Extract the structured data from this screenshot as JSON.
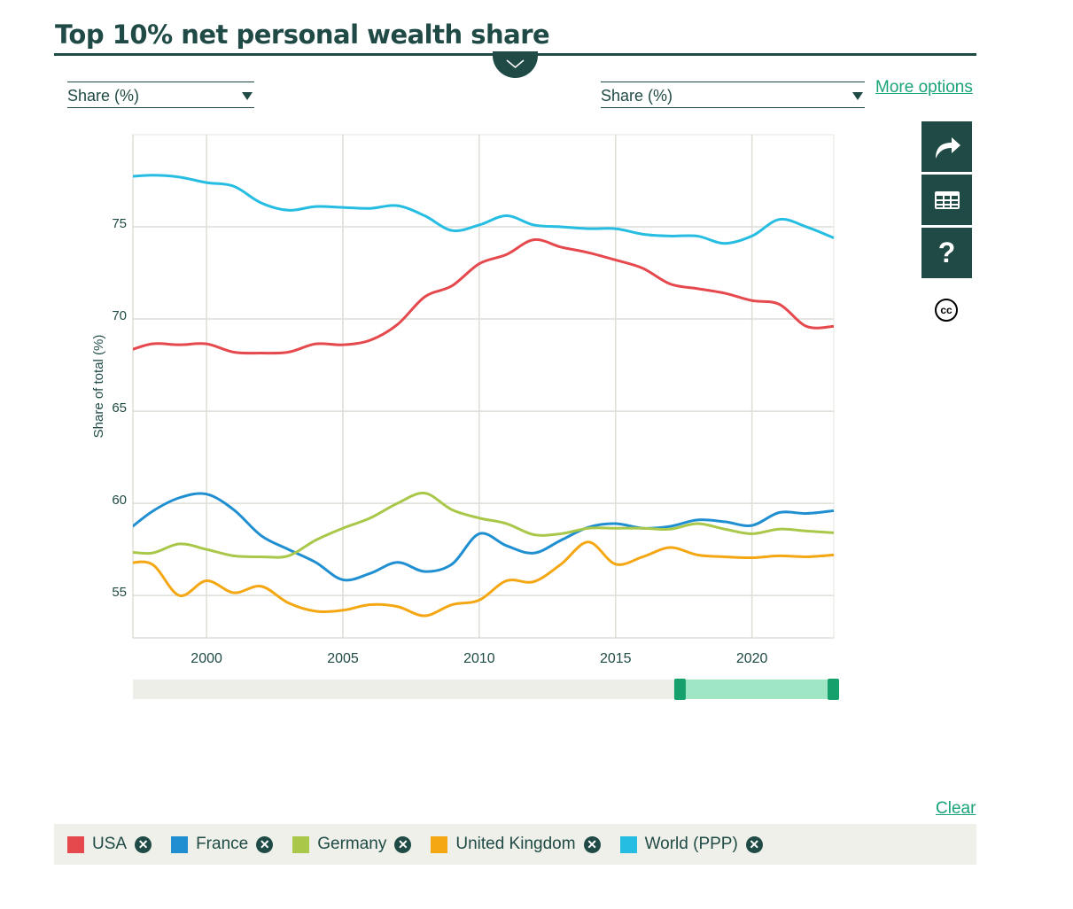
{
  "header": {
    "title": "Top 10% net personal wealth share"
  },
  "controls": {
    "left_select": "Share (%)",
    "right_select": "Share (%)",
    "more_options": "More options",
    "clear": "Clear"
  },
  "side_buttons": [
    {
      "icon": "share-icon"
    },
    {
      "icon": "table-icon"
    },
    {
      "icon": "help-icon"
    }
  ],
  "license": {
    "icon": "creative-commons-icon",
    "text": "cc"
  },
  "range_slider": {
    "selected_range": [
      2017,
      2023
    ]
  },
  "chart_data": {
    "type": "line",
    "ylabel": "Share of total (%)",
    "xlabel": "",
    "xlim": [
      1997.3,
      2023
    ],
    "ylim": [
      52.7,
      80
    ],
    "xticks": [
      2000,
      2005,
      2010,
      2015,
      2020
    ],
    "yticks": [
      55,
      60,
      65,
      70,
      75
    ],
    "grid": true,
    "x": [
      1997,
      1998,
      1999,
      2000,
      2001,
      2002,
      2003,
      2004,
      2005,
      2006,
      2007,
      2008,
      2009,
      2010,
      2011,
      2012,
      2013,
      2014,
      2015,
      2016,
      2017,
      2018,
      2019,
      2020,
      2021,
      2022,
      2023
    ],
    "series": [
      {
        "name": "USA",
        "color": "#e5484d",
        "values": [
          68.2,
          68.65,
          68.6,
          68.65,
          68.2,
          68.15,
          68.2,
          68.65,
          68.6,
          68.85,
          69.7,
          71.2,
          71.8,
          73.0,
          73.5,
          74.3,
          73.9,
          73.6,
          73.2,
          72.75,
          71.9,
          71.65,
          71.4,
          71.0,
          70.8,
          69.6,
          69.6
        ]
      },
      {
        "name": "France",
        "color": "#1f8fd1",
        "values": [
          58.4,
          59.55,
          60.3,
          60.5,
          59.65,
          58.25,
          57.5,
          56.8,
          55.85,
          56.2,
          56.8,
          56.3,
          56.7,
          58.35,
          57.7,
          57.3,
          58.0,
          58.7,
          58.9,
          58.65,
          58.75,
          59.1,
          59.0,
          58.8,
          59.5,
          59.45,
          59.6
        ]
      },
      {
        "name": "Germany",
        "color": "#a9c84a",
        "values": [
          57.4,
          57.3,
          57.8,
          57.5,
          57.15,
          57.1,
          57.15,
          58.0,
          58.65,
          59.2,
          60.0,
          60.55,
          59.65,
          59.2,
          58.9,
          58.3,
          58.35,
          58.65,
          58.65,
          58.65,
          58.6,
          58.9,
          58.6,
          58.35,
          58.6,
          58.5,
          58.4
        ]
      },
      {
        "name": "United Kingdom",
        "color": "#f4a712",
        "values": [
          56.7,
          56.7,
          55.0,
          55.8,
          55.15,
          55.5,
          54.6,
          54.15,
          54.2,
          54.5,
          54.4,
          53.9,
          54.5,
          54.75,
          55.8,
          55.75,
          56.7,
          57.9,
          56.7,
          57.1,
          57.6,
          57.2,
          57.1,
          57.05,
          57.15,
          57.1,
          57.2
        ]
      },
      {
        "name": "World (PPP)",
        "color": "#26bde2",
        "values": [
          77.7,
          77.8,
          77.7,
          77.4,
          77.2,
          76.3,
          75.9,
          76.1,
          76.05,
          76.0,
          76.15,
          75.6,
          74.8,
          75.1,
          75.6,
          75.1,
          75.0,
          74.9,
          74.9,
          74.6,
          74.5,
          74.5,
          74.1,
          74.5,
          75.4,
          75.0,
          74.4
        ]
      }
    ]
  }
}
